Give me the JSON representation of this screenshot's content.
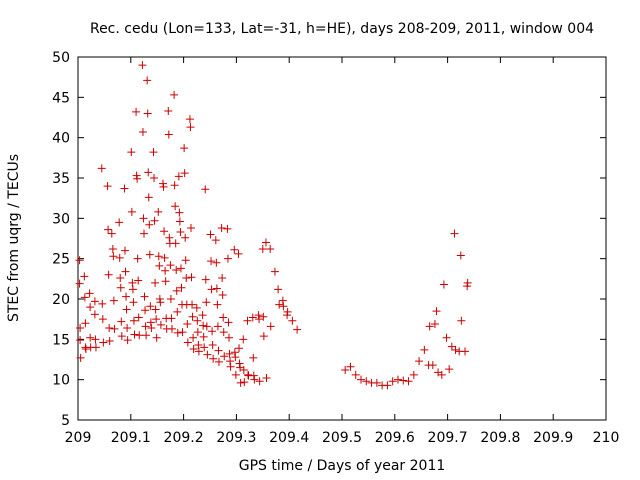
{
  "chart_data": {
    "type": "scatter",
    "title": "Rec. cedu (Lon=133, Lat=-31, h=HE), days 208-209, 2011, window 004",
    "xlabel": "GPS time / Days of year 2011",
    "ylabel": "STEC from uqrg / TECUs",
    "xlim": [
      209,
      210
    ],
    "ylim": [
      5,
      50
    ],
    "xticks": [
      209,
      209.1,
      209.2,
      209.3,
      209.4,
      209.5,
      209.6,
      209.7,
      209.8,
      209.9,
      210
    ],
    "xtick_labels": [
      "209",
      "209.1",
      "209.2",
      "209.3",
      "209.4",
      "209.5",
      "209.6",
      "209.7",
      "209.8",
      "209.9",
      "210"
    ],
    "yticks": [
      5,
      10,
      15,
      20,
      25,
      30,
      35,
      40,
      45,
      50
    ],
    "ytick_labels": [
      "5",
      "10",
      "15",
      "20",
      "25",
      "30",
      "35",
      "40",
      "45",
      "50"
    ],
    "grid": false,
    "marker": "+",
    "marker_color": "#cc0000",
    "series": [
      {
        "name": "STEC",
        "points": [
          [
            209.003,
            24.8
          ],
          [
            209.003,
            21.9
          ],
          [
            209.004,
            16.4
          ],
          [
            209.004,
            14.9
          ],
          [
            209.005,
            12.7
          ],
          [
            209.012,
            22.8
          ],
          [
            209.013,
            20.2
          ],
          [
            209.014,
            17.0
          ],
          [
            209.014,
            14.0
          ],
          [
            209.015,
            13.8
          ],
          [
            209.022,
            20.7
          ],
          [
            209.023,
            19.0
          ],
          [
            209.023,
            15.2
          ],
          [
            209.024,
            14.0
          ],
          [
            209.032,
            19.7
          ],
          [
            209.032,
            18.1
          ],
          [
            209.033,
            15.0
          ],
          [
            209.034,
            14.0
          ],
          [
            209.045,
            36.2
          ],
          [
            209.046,
            19.4
          ],
          [
            209.047,
            17.5
          ],
          [
            209.048,
            14.6
          ],
          [
            209.056,
            34.0
          ],
          [
            209.057,
            28.6
          ],
          [
            209.058,
            23.0
          ],
          [
            209.059,
            16.4
          ],
          [
            209.06,
            14.8
          ],
          [
            209.064,
            28.1
          ],
          [
            209.066,
            26.2
          ],
          [
            209.067,
            25.3
          ],
          [
            209.068,
            19.8
          ],
          [
            209.069,
            16.3
          ],
          [
            209.078,
            29.5
          ],
          [
            209.079,
            25.1
          ],
          [
            209.08,
            22.6
          ],
          [
            209.081,
            21.4
          ],
          [
            209.082,
            17.2
          ],
          [
            209.083,
            15.4
          ],
          [
            209.088,
            33.7
          ],
          [
            209.089,
            26.0
          ],
          [
            209.09,
            23.4
          ],
          [
            209.091,
            20.3
          ],
          [
            209.092,
            18.7
          ],
          [
            209.093,
            16.4
          ],
          [
            209.094,
            14.9
          ],
          [
            209.101,
            38.2
          ],
          [
            209.102,
            30.8
          ],
          [
            209.103,
            22.0
          ],
          [
            209.104,
            21.2
          ],
          [
            209.105,
            19.6
          ],
          [
            209.106,
            17.3
          ],
          [
            209.107,
            15.6
          ],
          [
            209.11,
            43.2
          ],
          [
            209.111,
            35.3
          ],
          [
            209.112,
            34.9
          ],
          [
            209.113,
            25.0
          ],
          [
            209.114,
            22.3
          ],
          [
            209.115,
            17.7
          ],
          [
            209.116,
            15.5
          ],
          [
            209.122,
            49.0
          ],
          [
            209.123,
            40.7
          ],
          [
            209.124,
            30.0
          ],
          [
            209.125,
            28.1
          ],
          [
            209.126,
            20.3
          ],
          [
            209.127,
            18.6
          ],
          [
            209.128,
            16.6
          ],
          [
            209.129,
            15.5
          ],
          [
            209.131,
            47.1
          ],
          [
            209.132,
            43.0
          ],
          [
            209.133,
            35.7
          ],
          [
            209.134,
            32.6
          ],
          [
            209.135,
            29.2
          ],
          [
            209.136,
            25.5
          ],
          [
            209.137,
            19.1
          ],
          [
            209.138,
            17.1
          ],
          [
            209.139,
            16.4
          ],
          [
            209.143,
            38.2
          ],
          [
            209.144,
            35.0
          ],
          [
            209.145,
            29.7
          ],
          [
            209.146,
            22.0
          ],
          [
            209.147,
            18.7
          ],
          [
            209.148,
            17.5
          ],
          [
            209.149,
            15.2
          ],
          [
            209.152,
            30.8
          ],
          [
            209.153,
            25.3
          ],
          [
            209.154,
            24.1
          ],
          [
            209.155,
            20.0
          ],
          [
            209.156,
            19.6
          ],
          [
            209.157,
            16.8
          ],
          [
            209.161,
            34.3
          ],
          [
            209.162,
            33.9
          ],
          [
            209.163,
            28.4
          ],
          [
            209.164,
            25.1
          ],
          [
            209.165,
            23.5
          ],
          [
            209.166,
            22.2
          ],
          [
            209.167,
            17.6
          ],
          [
            209.168,
            16.3
          ],
          [
            209.171,
            43.3
          ],
          [
            209.172,
            40.4
          ],
          [
            209.173,
            27.6
          ],
          [
            209.174,
            26.9
          ],
          [
            209.175,
            24.2
          ],
          [
            209.176,
            20.0
          ],
          [
            209.177,
            17.6
          ],
          [
            209.178,
            16.3
          ],
          [
            209.182,
            45.3
          ],
          [
            209.183,
            34.1
          ],
          [
            209.184,
            31.5
          ],
          [
            209.185,
            26.9
          ],
          [
            209.186,
            23.6
          ],
          [
            209.187,
            21.0
          ],
          [
            209.188,
            18.4
          ],
          [
            209.189,
            15.8
          ],
          [
            209.191,
            35.2
          ],
          [
            209.192,
            30.7
          ],
          [
            209.193,
            29.6
          ],
          [
            209.194,
            28.3
          ],
          [
            209.195,
            23.8
          ],
          [
            209.196,
            21.4
          ],
          [
            209.197,
            19.3
          ],
          [
            209.198,
            15.9
          ],
          [
            209.201,
            38.7
          ],
          [
            209.202,
            35.6
          ],
          [
            209.203,
            27.6
          ],
          [
            209.204,
            24.8
          ],
          [
            209.205,
            22.6
          ],
          [
            209.206,
            19.3
          ],
          [
            209.207,
            16.9
          ],
          [
            209.208,
            14.6
          ],
          [
            209.212,
            42.3
          ],
          [
            209.213,
            41.3
          ],
          [
            209.214,
            28.8
          ],
          [
            209.215,
            22.7
          ],
          [
            209.216,
            19.3
          ],
          [
            209.217,
            17.8
          ],
          [
            209.218,
            15.2
          ],
          [
            209.219,
            13.8
          ],
          [
            209.225,
            18.9
          ],
          [
            209.226,
            17.3
          ],
          [
            209.227,
            15.9
          ],
          [
            209.228,
            14.3
          ],
          [
            209.229,
            13.5
          ],
          [
            209.236,
            18.0
          ],
          [
            209.237,
            16.7
          ],
          [
            209.238,
            15.3
          ],
          [
            209.239,
            14.0
          ],
          [
            209.241,
            33.6
          ],
          [
            209.242,
            22.4
          ],
          [
            209.243,
            19.6
          ],
          [
            209.244,
            16.6
          ],
          [
            209.245,
            13.1
          ],
          [
            209.251,
            28.0
          ],
          [
            209.252,
            24.7
          ],
          [
            209.253,
            21.2
          ],
          [
            209.254,
            16.0
          ],
          [
            209.255,
            14.3
          ],
          [
            209.256,
            12.6
          ],
          [
            209.261,
            27.3
          ],
          [
            209.262,
            24.5
          ],
          [
            209.263,
            21.3
          ],
          [
            209.264,
            19.3
          ],
          [
            209.265,
            16.6
          ],
          [
            209.266,
            13.6
          ],
          [
            209.267,
            12.2
          ],
          [
            209.272,
            28.8
          ],
          [
            209.273,
            22.6
          ],
          [
            209.274,
            20.5
          ],
          [
            209.275,
            17.7
          ],
          [
            209.276,
            15.9
          ],
          [
            209.277,
            12.9
          ],
          [
            209.283,
            28.7
          ],
          [
            209.284,
            25.0
          ],
          [
            209.285,
            17.1
          ],
          [
            209.286,
            15.2
          ],
          [
            209.287,
            13.2
          ],
          [
            209.288,
            12.3
          ],
          [
            209.289,
            11.6
          ],
          [
            209.296,
            26.1
          ],
          [
            209.297,
            13.4
          ],
          [
            209.298,
            12.8
          ],
          [
            209.299,
            10.6
          ],
          [
            209.304,
            25.6
          ],
          [
            209.305,
            13.9
          ],
          [
            209.306,
            12.0
          ],
          [
            209.307,
            11.5
          ],
          [
            209.308,
            9.6
          ],
          [
            209.313,
            15.0
          ],
          [
            209.314,
            11.2
          ],
          [
            209.315,
            9.7
          ],
          [
            209.321,
            17.3
          ],
          [
            209.322,
            10.6
          ],
          [
            209.323,
            10.5
          ],
          [
            209.331,
            17.7
          ],
          [
            209.332,
            12.7
          ],
          [
            209.333,
            10.5
          ],
          [
            209.334,
            10.0
          ],
          [
            209.342,
            18.0
          ],
          [
            209.343,
            17.5
          ],
          [
            209.344,
            9.8
          ],
          [
            209.35,
            26.2
          ],
          [
            209.351,
            17.8
          ],
          [
            209.352,
            15.4
          ],
          [
            209.356,
            27.0
          ],
          [
            209.357,
            10.2
          ],
          [
            209.364,
            26.2
          ],
          [
            209.365,
            16.6
          ],
          [
            209.373,
            23.4
          ],
          [
            209.379,
            21.2
          ],
          [
            209.381,
            19.3
          ],
          [
            209.388,
            19.8
          ],
          [
            209.389,
            19.1
          ],
          [
            209.396,
            18.0
          ],
          [
            209.397,
            18.4
          ],
          [
            209.406,
            17.3
          ],
          [
            209.415,
            16.2
          ],
          [
            209.506,
            11.2
          ],
          [
            209.516,
            11.6
          ],
          [
            209.526,
            10.6
          ],
          [
            209.536,
            10.0
          ],
          [
            209.546,
            9.8
          ],
          [
            209.556,
            9.6
          ],
          [
            209.566,
            9.6
          ],
          [
            209.576,
            9.3
          ],
          [
            209.586,
            9.3
          ],
          [
            209.596,
            9.8
          ],
          [
            209.606,
            10.0
          ],
          [
            209.616,
            9.9
          ],
          [
            209.626,
            9.8
          ],
          [
            209.636,
            10.6
          ],
          [
            209.646,
            12.3
          ],
          [
            209.656,
            13.7
          ],
          [
            209.664,
            11.8
          ],
          [
            209.666,
            16.6
          ],
          [
            209.672,
            11.8
          ],
          [
            209.676,
            16.9
          ],
          [
            209.679,
            18.5
          ],
          [
            209.682,
            10.9
          ],
          [
            209.689,
            10.6
          ],
          [
            209.693,
            21.8
          ],
          [
            209.698,
            15.2
          ],
          [
            209.703,
            11.3
          ],
          [
            209.708,
            14.1
          ],
          [
            209.713,
            28.1
          ],
          [
            209.715,
            13.7
          ],
          [
            209.722,
            13.5
          ],
          [
            209.725,
            25.4
          ],
          [
            209.726,
            17.3
          ],
          [
            209.733,
            13.5
          ],
          [
            209.737,
            21.6
          ],
          [
            209.738,
            22.0
          ]
        ]
      }
    ]
  }
}
